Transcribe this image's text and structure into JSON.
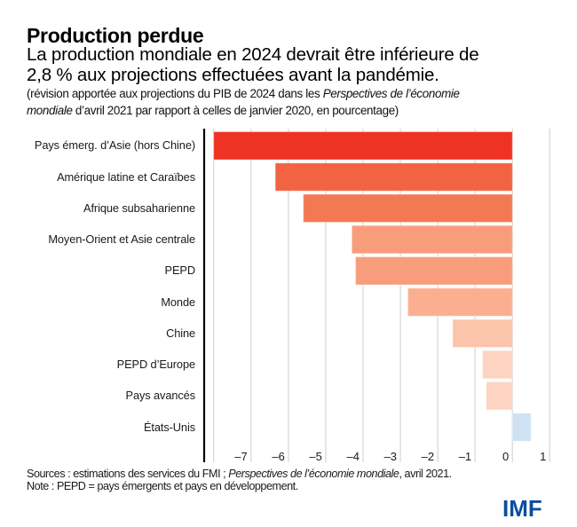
{
  "header": {
    "title": "Production perdue",
    "subtitle_lines": [
      "La production mondiale en 2024 devrait être inférieure de",
      "2,8 % aux projections effectuées avant la pandémie."
    ],
    "note_line1_plain": "(révision apportée aux projections du PIB de 2024 dans les ",
    "note_line1_italic": "Perspectives de l’économie",
    "note_line2_italic": "mondiale",
    "note_line2_plain": " d’avril 2021 par rapport à celles de janvier 2020, en pourcentage)"
  },
  "chart_data": {
    "type": "bar",
    "orientation": "horizontal",
    "title": "Production perdue",
    "xlabel": "",
    "ylabel": "",
    "categories": [
      "Pays émerg. d’Asie (hors Chine)",
      "Amérique latine et Caraïbes",
      "Afrique subsaharienne",
      "Moyen-Orient et Asie centrale",
      "PEPD",
      "Monde",
      "Chine",
      "PEPD d’Europe",
      "Pays avancés",
      "États-Unis"
    ],
    "values": [
      -8.0,
      -6.35,
      -5.6,
      -4.3,
      -4.2,
      -2.8,
      -1.6,
      -0.8,
      -0.7,
      0.5
    ],
    "colors": [
      "#ee3224",
      "#f26344",
      "#f37955",
      "#f89d7c",
      "#f89d7c",
      "#faaf91",
      "#fbc4ab",
      "#fdd4c2",
      "#fdd4c2",
      "#cfe2f3"
    ],
    "xlim": [
      -8,
      1
    ],
    "xticks": [
      -7,
      -6,
      -5,
      -4,
      -3,
      -2,
      -1,
      0,
      1
    ],
    "xtick_labels": [
      "–7",
      "–6",
      "–5",
      "–4",
      "–3",
      "–2",
      "–1",
      "0",
      "1"
    ],
    "grid": true,
    "legend": "none"
  },
  "footer": {
    "sources_plain": "Sources : estimations des services du FMI ; ",
    "sources_italic": "Perspectives de l’économie mondiale",
    "sources_end": ", avril 2021.",
    "note": "Note : PEPD = pays émergents et pays en développement."
  },
  "logo": {
    "text": "IMF",
    "color": "#0a4d9c"
  }
}
